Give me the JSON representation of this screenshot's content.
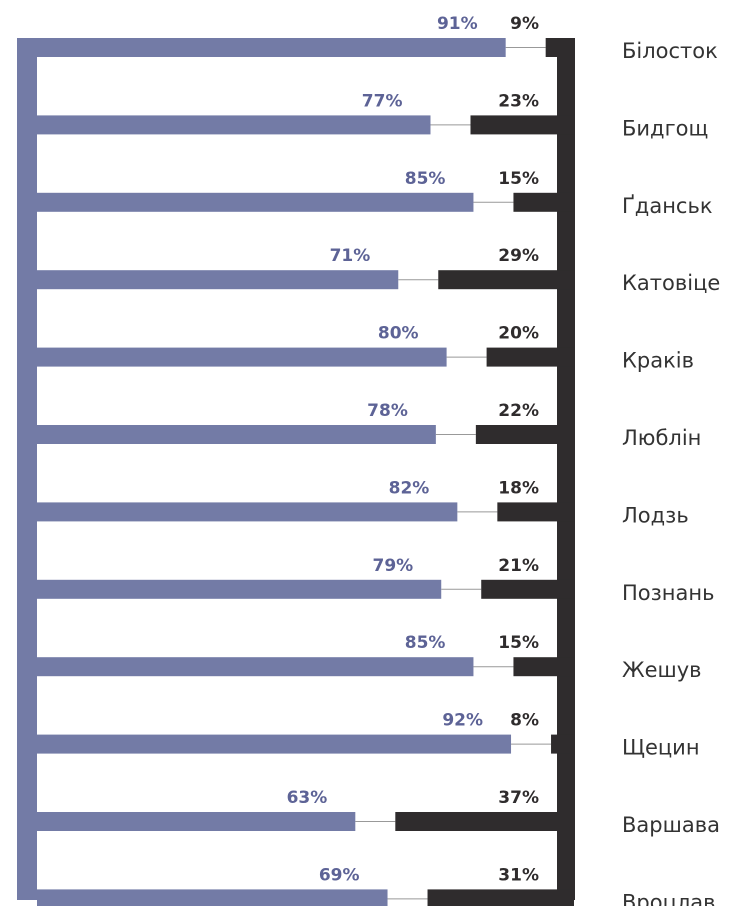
{
  "chart_data": {
    "type": "bar",
    "stacked": true,
    "orientation": "horizontal",
    "categories": [
      "Білосток",
      "Бидгощ",
      "Ґданськ",
      "Катовіце",
      "Краків",
      "Люблін",
      "Лодзь",
      "Познань",
      "Жешув",
      "Щецин",
      "Варшава",
      "Вроцлав"
    ],
    "series": [
      {
        "color": "#737ba6",
        "label_color": "#5d6396",
        "values": [
          91,
          77,
          85,
          71,
          80,
          78,
          82,
          79,
          85,
          92,
          63,
          69
        ],
        "labels": [
          "91%",
          "77%",
          "85%",
          "71%",
          "80%",
          "78%",
          "82%",
          "79%",
          "85%",
          "92%",
          "63%",
          "69%"
        ]
      },
      {
        "color": "#2f2c2d",
        "label_color": "#2f2c2d",
        "values": [
          9,
          23,
          15,
          29,
          20,
          22,
          18,
          21,
          15,
          8,
          37,
          31
        ],
        "labels": [
          "9%",
          "23%",
          "15%",
          "29%",
          "20%",
          "22%",
          "18%",
          "21%",
          "15%",
          "8%",
          "37%",
          "31%"
        ]
      }
    ],
    "xlim": [
      0,
      100
    ],
    "grid": false,
    "legend": "none",
    "connector_color": "#999999"
  }
}
